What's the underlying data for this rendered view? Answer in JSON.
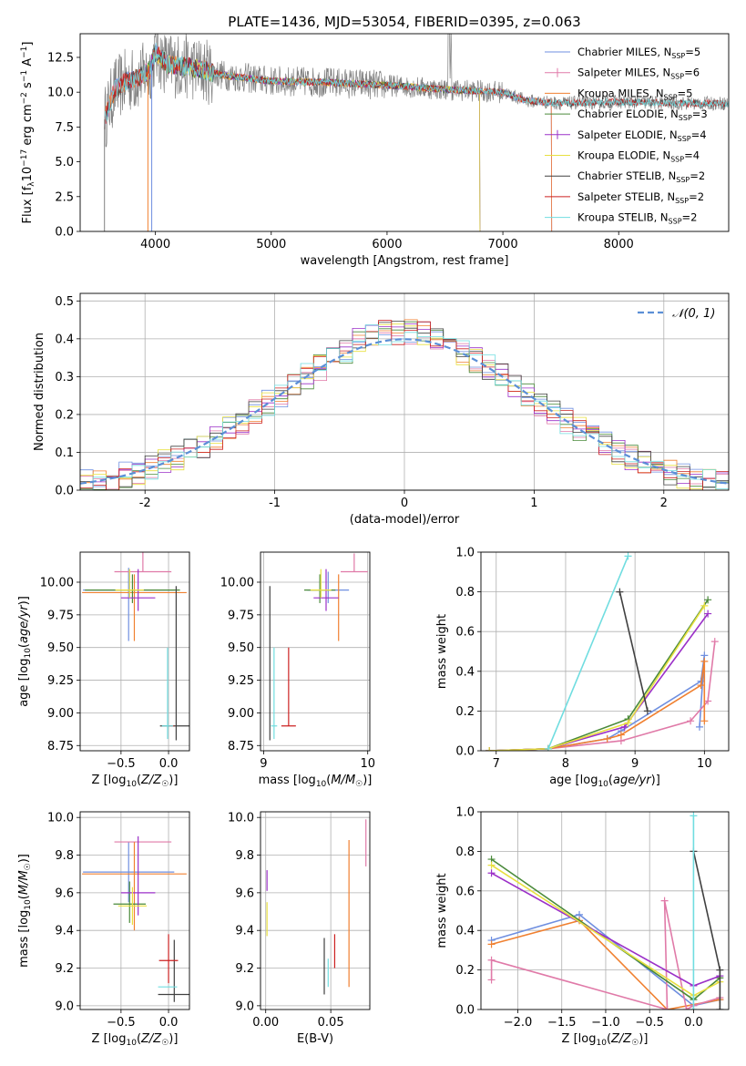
{
  "figure": {
    "title": "PLATE=1436, MJD=53054, FIBERID=0395, z=0.063"
  },
  "colors": {
    "chabrier_miles": "#6f8fe0",
    "salpeter_miles": "#e07aa8",
    "kroupa_miles": "#f08030",
    "chabrier_elodie": "#4a8a3a",
    "salpeter_elodie": "#9b30c8",
    "kroupa_elodie": "#e8e040",
    "chabrier_stelib": "#404040",
    "salpeter_stelib": "#cc2020",
    "kroupa_stelib": "#70dde0",
    "data": "#808080",
    "normal": "#5b8fd6"
  },
  "chart_data": [
    {
      "id": "spectrum",
      "type": "line",
      "title": "PLATE=1436, MJD=53054, FIBERID=0395, z=0.063",
      "xlabel": "wavelength [Angstrom, rest frame]",
      "ylabel": "Flux [f_λ 10^-17 erg cm^-2 s^-1 A^-1]",
      "xlim": [
        3350,
        8950
      ],
      "ylim": [
        0,
        14.2
      ],
      "xticks": [
        4000,
        5000,
        6000,
        7000,
        8000
      ],
      "yticks": [
        0.0,
        2.5,
        5.0,
        7.5,
        10.0,
        12.5
      ],
      "continuum": {
        "x": [
          3550,
          3650,
          3750,
          3850,
          3950,
          4000,
          4100,
          4300,
          4600,
          5000,
          5500,
          6000,
          6500,
          7000,
          7200,
          7500,
          8000,
          8500,
          8900
        ],
        "y": [
          7.8,
          10.2,
          10.8,
          11.0,
          11.6,
          12.9,
          12.0,
          11.8,
          11.2,
          10.8,
          10.7,
          10.5,
          10.2,
          10.0,
          9.4,
          9.2,
          9.3,
          9.2,
          9.2
        ]
      },
      "legend": [
        {
          "name": "Chabrier MILES, N_SSP=5",
          "color_key": "chabrier_miles",
          "marker": "none"
        },
        {
          "name": "Salpeter MILES, N_SSP=6",
          "color_key": "salpeter_miles",
          "marker": "plus"
        },
        {
          "name": "Kroupa MILES, N_SSP=5",
          "color_key": "kroupa_miles",
          "marker": "none"
        },
        {
          "name": "Chabrier ELODIE, N_SSP=3",
          "color_key": "chabrier_elodie",
          "marker": "none"
        },
        {
          "name": "Salpeter ELODIE, N_SSP=4",
          "color_key": "salpeter_elodie",
          "marker": "plus"
        },
        {
          "name": "Kroupa ELODIE, N_SSP=4",
          "color_key": "kroupa_elodie",
          "marker": "none"
        },
        {
          "name": "Chabrier STELIB, N_SSP=2",
          "color_key": "chabrier_stelib",
          "marker": "none"
        },
        {
          "name": "Salpeter STELIB, N_SSP=2",
          "color_key": "salpeter_stelib",
          "marker": "none"
        },
        {
          "name": "Kroupa STELIB, N_SSP=2",
          "color_key": "kroupa_stelib",
          "marker": "none"
        }
      ],
      "legend_placement": "top-right",
      "grid": false
    },
    {
      "id": "residuals",
      "type": "histogram",
      "xlabel": "(data-model)/error",
      "ylabel": "Normed distribution",
      "xlim": [
        -2.5,
        2.5
      ],
      "ylim": [
        0,
        0.52
      ],
      "xticks": [
        -2,
        -1,
        0,
        1,
        2
      ],
      "yticks": [
        0.0,
        0.1,
        0.2,
        0.3,
        0.4,
        0.5
      ],
      "legend": [
        {
          "name": "𝒩(0, 1)",
          "color_key": "normal",
          "style": "dashed"
        }
      ],
      "legend_placement": "top-right",
      "grid": true
    },
    {
      "id": "age_vs_Z",
      "type": "scatter",
      "xlabel": "Z [log10(Z/Z☉)]",
      "ylabel": "age  [log10(age/yr)]",
      "xlim": [
        -0.93,
        0.22
      ],
      "ylim": [
        8.71,
        10.23
      ],
      "xticks": [
        -0.5,
        0.0
      ],
      "xtick_labels": [
        "−0.5",
        "0.0"
      ],
      "yticks": [
        8.75,
        9.0,
        9.25,
        9.5,
        9.75,
        10.0
      ],
      "points": [
        {
          "color_key": "chabrier_miles",
          "x": -0.42,
          "y": 9.94,
          "xerr": 0.48,
          "yerr": [
            0.39,
            0.17
          ]
        },
        {
          "color_key": "salpeter_miles",
          "x": -0.27,
          "y": 10.08,
          "xerr": 0.3,
          "yerr": [
            0.0,
            0.15
          ]
        },
        {
          "color_key": "kroupa_miles",
          "x": -0.36,
          "y": 9.92,
          "xerr": 0.55,
          "yerr": [
            0.37,
            0.14
          ]
        },
        {
          "color_key": "chabrier_elodie",
          "x": -0.38,
          "y": 9.94,
          "xerr": 0.5,
          "yerr": [
            0.1,
            0.12
          ]
        },
        {
          "color_key": "salpeter_elodie",
          "x": -0.32,
          "y": 9.88,
          "xerr": 0.18,
          "yerr": [
            0.1,
            0.22
          ]
        },
        {
          "color_key": "kroupa_elodie",
          "x": -0.41,
          "y": 9.94,
          "xerr": 0.15,
          "yerr": [
            0.06,
            0.16
          ]
        },
        {
          "color_key": "chabrier_stelib",
          "x": 0.08,
          "y": 8.9,
          "xerr": 0.17,
          "yerr": [
            0.11,
            1.07
          ]
        },
        {
          "color_key": "salpeter_stelib",
          "x": 0.03,
          "y": 8.9,
          "xerr": 0.03,
          "yerr": [
            0.0,
            0.0
          ]
        },
        {
          "color_key": "kroupa_stelib",
          "x": -0.01,
          "y": 8.9,
          "xerr": 0.06,
          "yerr": [
            0.1,
            0.6
          ]
        }
      ],
      "grid": true
    },
    {
      "id": "age_vs_mass",
      "type": "scatter",
      "xlabel": "mass [log10(M/M☉)]",
      "ylabel": "",
      "xlim": [
        8.97,
        10.02
      ],
      "ylim": [
        8.71,
        10.23
      ],
      "xticks": [
        9,
        10
      ],
      "yticks": [
        8.75,
        9.0,
        9.25,
        9.5,
        9.75,
        10.0
      ],
      "points": [
        {
          "color_key": "chabrier_miles",
          "x": 9.62,
          "y": 9.94,
          "xerr": 0.2,
          "yerr": [
            0.1,
            0.14
          ]
        },
        {
          "color_key": "salpeter_miles",
          "x": 9.87,
          "y": 10.08,
          "xerr": 0.13,
          "yerr": [
            0.0,
            0.14
          ]
        },
        {
          "color_key": "kroupa_miles",
          "x": 9.72,
          "y": 9.92,
          "xerr": 0.0,
          "yerr": [
            0.37,
            0.14
          ]
        },
        {
          "color_key": "chabrier_elodie",
          "x": 9.54,
          "y": 9.94,
          "xerr": 0.15,
          "yerr": [
            0.1,
            0.12
          ]
        },
        {
          "color_key": "salpeter_elodie",
          "x": 9.6,
          "y": 9.88,
          "xerr": 0.12,
          "yerr": [
            0.1,
            0.22
          ]
        },
        {
          "color_key": "kroupa_elodie",
          "x": 9.55,
          "y": 9.94,
          "xerr": 0.1,
          "yerr": [
            0.06,
            0.16
          ]
        },
        {
          "color_key": "chabrier_stelib",
          "x": 9.06,
          "y": 8.9,
          "xerr": 0.0,
          "yerr": [
            0.11,
            1.07
          ]
        },
        {
          "color_key": "salpeter_stelib",
          "x": 9.24,
          "y": 8.9,
          "xerr": 0.07,
          "yerr": [
            0.0,
            0.6
          ]
        },
        {
          "color_key": "kroupa_stelib",
          "x": 9.1,
          "y": 8.9,
          "xerr": 0.03,
          "yerr": [
            0.1,
            0.6
          ]
        }
      ],
      "grid": true
    },
    {
      "id": "weight_vs_age",
      "type": "line",
      "xlabel": "age  [log10(age/yr)]",
      "ylabel": "mass weight",
      "xlim": [
        6.78,
        10.35
      ],
      "ylim": [
        0,
        1.0
      ],
      "xticks": [
        7,
        8,
        9,
        10
      ],
      "yticks": [
        0.0,
        0.2,
        0.4,
        0.6,
        0.8,
        1.0
      ],
      "series": [
        {
          "color_key": "chabrier_miles",
          "x": [
            6.9,
            7.75,
            8.6,
            8.8,
            9.95,
            10.0,
            9.93
          ],
          "y": [
            0.0,
            0.01,
            0.06,
            0.1,
            0.35,
            0.48,
            0.12
          ]
        },
        {
          "color_key": "salpeter_miles",
          "x": [
            6.9,
            7.75,
            8.8,
            9.8,
            10.05,
            10.15
          ],
          "y": [
            0.0,
            0.01,
            0.05,
            0.15,
            0.25,
            0.55
          ]
        },
        {
          "color_key": "kroupa_miles",
          "x": [
            6.9,
            7.75,
            8.6,
            8.8,
            9.95,
            10.0,
            10.0
          ],
          "y": [
            0.0,
            0.01,
            0.06,
            0.08,
            0.33,
            0.45,
            0.15
          ]
        },
        {
          "color_key": "chabrier_elodie",
          "x": [
            6.9,
            7.75,
            8.9,
            10.05
          ],
          "y": [
            0.0,
            0.01,
            0.16,
            0.76
          ]
        },
        {
          "color_key": "salpeter_elodie",
          "x": [
            6.9,
            7.75,
            8.85,
            10.05
          ],
          "y": [
            0.0,
            0.01,
            0.12,
            0.69
          ]
        },
        {
          "color_key": "kroupa_elodie",
          "x": [
            6.9,
            7.75,
            8.9,
            10.0
          ],
          "y": [
            0.0,
            0.01,
            0.14,
            0.73
          ]
        },
        {
          "color_key": "chabrier_stelib",
          "x": [
            8.78,
            9.18
          ],
          "y": [
            0.8,
            0.2
          ]
        },
        {
          "color_key": "kroupa_stelib",
          "x": [
            7.75,
            8.9
          ],
          "y": [
            0.01,
            0.98
          ]
        }
      ],
      "grid": true
    },
    {
      "id": "mass_vs_Z",
      "type": "scatter",
      "xlabel": "Z [log10(Z/Z☉)]",
      "ylabel": "mass [log10(M/M☉)]",
      "xlim": [
        -0.93,
        0.22
      ],
      "ylim": [
        8.98,
        10.03
      ],
      "xticks": [
        -0.5,
        0.0
      ],
      "xtick_labels": [
        "−0.5",
        "0.0"
      ],
      "yticks": [
        9.0,
        9.2,
        9.4,
        9.6,
        9.8,
        10.0
      ],
      "points": [
        {
          "color_key": "chabrier_miles",
          "x": -0.42,
          "y": 9.71,
          "xerr": 0.48,
          "yerr": [
            0.16,
            0.16
          ]
        },
        {
          "color_key": "salpeter_miles",
          "x": -0.27,
          "y": 9.87,
          "xerr": 0.3,
          "yerr": [
            0.0,
            0.0
          ]
        },
        {
          "color_key": "kroupa_miles",
          "x": -0.36,
          "y": 9.7,
          "xerr": 0.55,
          "yerr": [
            0.3,
            0.17
          ]
        },
        {
          "color_key": "chabrier_elodie",
          "x": -0.41,
          "y": 9.54,
          "xerr": 0.17,
          "yerr": [
            0.1,
            0.12
          ]
        },
        {
          "color_key": "salpeter_elodie",
          "x": -0.32,
          "y": 9.6,
          "xerr": 0.18,
          "yerr": [
            0.12,
            0.3
          ]
        },
        {
          "color_key": "kroupa_elodie",
          "x": -0.38,
          "y": 9.53,
          "xerr": 0.15,
          "yerr": [
            0.1,
            0.1
          ]
        },
        {
          "color_key": "chabrier_stelib",
          "x": 0.06,
          "y": 9.06,
          "xerr": 0.17,
          "yerr": [
            0.04,
            0.29
          ]
        },
        {
          "color_key": "salpeter_stelib",
          "x": 0.0,
          "y": 9.24,
          "xerr": 0.1,
          "yerr": [
            0.12,
            0.14
          ]
        },
        {
          "color_key": "kroupa_stelib",
          "x": -0.01,
          "y": 9.1,
          "xerr": 0.1,
          "yerr": [
            0.0,
            0.0
          ]
        }
      ],
      "grid": true
    },
    {
      "id": "mass_vs_ebv",
      "type": "scatter",
      "xlabel": "E(B-V)",
      "ylabel": "",
      "xlim": [
        -0.004,
        0.08
      ],
      "ylim": [
        8.98,
        10.03
      ],
      "xticks": [
        0.0,
        0.05
      ],
      "xtick_labels": [
        "0.00",
        "0.05"
      ],
      "yticks": [
        9.0,
        9.2,
        9.4,
        9.6,
        9.8,
        10.0
      ],
      "points": [
        {
          "color_key": "chabrier_stelib",
          "x": 0.045,
          "y": 9.06,
          "yerr": [
            0.0,
            0.3
          ]
        },
        {
          "color_key": "kroupa_stelib",
          "x": 0.048,
          "y": 9.1,
          "yerr": [
            0.0,
            0.15
          ]
        },
        {
          "color_key": "salpeter_stelib",
          "x": 0.053,
          "y": 9.2,
          "yerr": [
            0.0,
            0.18
          ]
        },
        {
          "color_key": "kroupa_miles",
          "x": 0.064,
          "y": 9.5,
          "yerr": [
            0.4,
            0.38
          ]
        },
        {
          "color_key": "salpeter_miles",
          "x": 0.077,
          "y": 9.87,
          "yerr": [
            0.13,
            0.12
          ]
        },
        {
          "color_key": "salpeter_elodie",
          "x": 0.001,
          "y": 9.66,
          "yerr": [
            0.05,
            0.06
          ]
        },
        {
          "color_key": "kroupa_elodie",
          "x": 0.001,
          "y": 9.45,
          "yerr": [
            0.08,
            0.1
          ]
        }
      ],
      "grid": true
    },
    {
      "id": "weight_vs_Z",
      "type": "line",
      "xlabel": "Z [log10(Z/Z☉)]",
      "ylabel": "mass weight",
      "xlim": [
        -2.42,
        0.4
      ],
      "ylim": [
        0,
        1.0
      ],
      "xticks": [
        -2.0,
        -1.5,
        -1.0,
        -0.5,
        0.0
      ],
      "xtick_labels": [
        "−2.0",
        "−1.5",
        "−1.0",
        "−0.5",
        "0.0"
      ],
      "yticks": [
        0.0,
        0.2,
        0.4,
        0.6,
        0.8,
        1.0
      ],
      "series": [
        {
          "color_key": "chabrier_miles",
          "x": [
            -2.3,
            -1.3,
            0.0,
            0.3
          ],
          "y": [
            0.35,
            0.48,
            0.02,
            0.05
          ]
        },
        {
          "color_key": "kroupa_miles",
          "x": [
            -2.3,
            -1.3,
            -0.3,
            0.3
          ],
          "y": [
            0.33,
            0.45,
            0.0,
            0.05
          ]
        },
        {
          "color_key": "salpeter_miles",
          "x": [
            -2.3,
            -2.3,
            -0.3,
            -0.33,
            -0.08,
            0.0,
            0.3
          ],
          "y": [
            0.15,
            0.25,
            0.0,
            0.55,
            0.0,
            0.02,
            0.06
          ]
        },
        {
          "color_key": "chabrier_elodie",
          "x": [
            -2.3,
            0.0,
            0.3
          ],
          "y": [
            0.76,
            0.05,
            0.16
          ]
        },
        {
          "color_key": "salpeter_elodie",
          "x": [
            -2.3,
            0.0,
            0.3
          ],
          "y": [
            0.69,
            0.12,
            0.17
          ]
        },
        {
          "color_key": "kroupa_elodie",
          "x": [
            -2.3,
            0.0,
            0.3
          ],
          "y": [
            0.73,
            0.07,
            0.14
          ]
        },
        {
          "color_key": "chabrier_stelib",
          "x": [
            0.0,
            0.3,
            0.3
          ],
          "y": [
            0.8,
            0.2,
            0.0
          ]
        },
        {
          "color_key": "kroupa_stelib",
          "x": [
            0.0,
            0.0
          ],
          "y": [
            0.98,
            0.0
          ]
        }
      ],
      "grid": true
    }
  ]
}
